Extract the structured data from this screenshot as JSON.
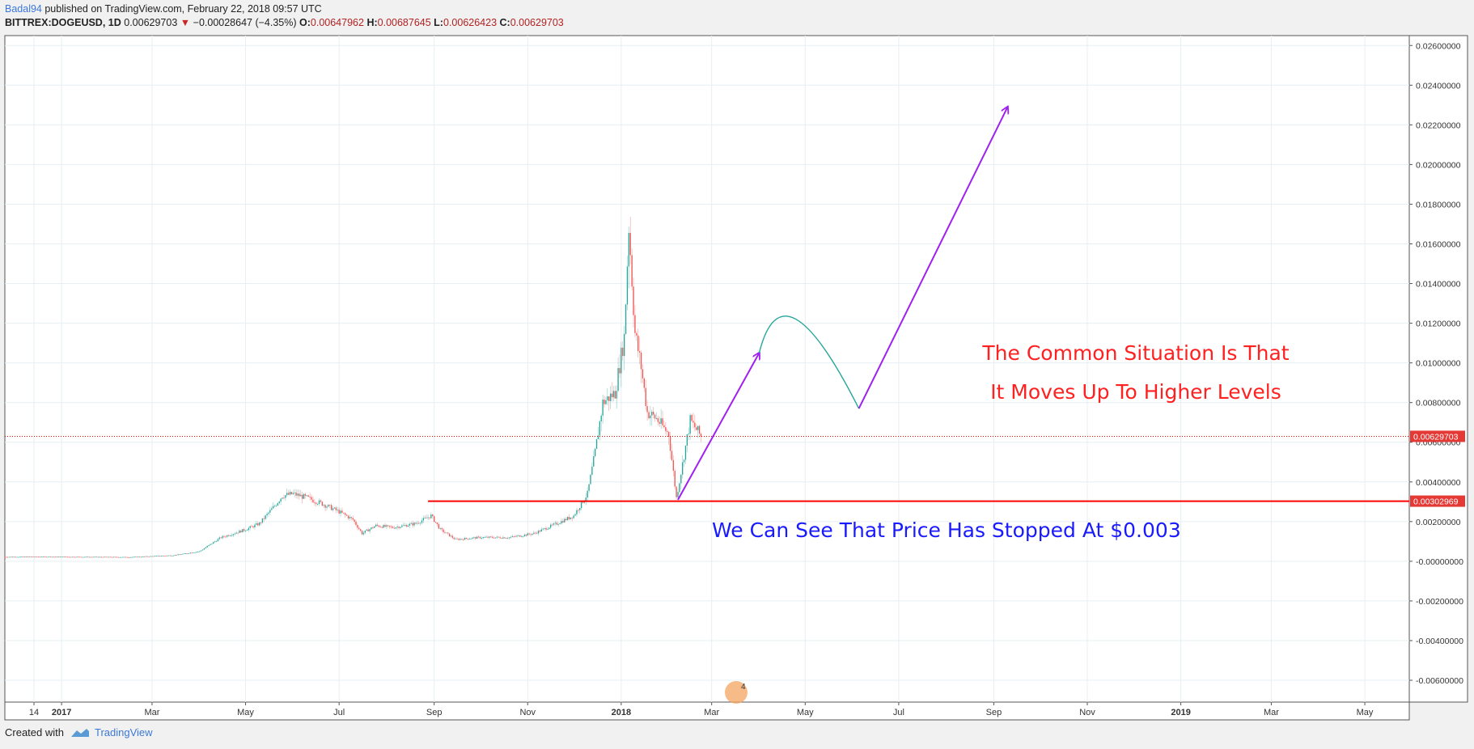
{
  "header": {
    "author": "Badal94",
    "published": "published on TradingView.com, February 22, 2018 09:57 UTC",
    "symbol": "BITTREX:DOGEUSD, 1D",
    "last": "0.00629703",
    "change_arrow": "▼",
    "change": "−0.00028647 (−4.35%)",
    "open_label": "O:",
    "open": "0.00647962",
    "high_label": "H:",
    "high": "0.00687645",
    "low_label": "L:",
    "low": "0.00626423",
    "close_label": "C:",
    "close": "0.00629703"
  },
  "footer": {
    "created_with": "Created with",
    "brand": "TradingView"
  },
  "colors": {
    "up": "#26a69a",
    "down": "#ef5350",
    "hline": "#ff0000",
    "arrow": "#a020f0",
    "curve": "#26a69a",
    "blue_text": "#1a1aff",
    "red_text": "#ff2020",
    "grid": "#e6eff3"
  },
  "chart_data": {
    "type": "candlestick",
    "y_axis_ticks": [
      "0.02600000",
      "0.02400000",
      "0.02200000",
      "0.02000000",
      "0.01800000",
      "0.01600000",
      "0.01400000",
      "0.01200000",
      "0.01000000",
      "0.00800000",
      "0.00600000",
      "0.00400000",
      "0.00200000",
      "-0.00000000",
      "-0.00200000",
      "-0.00400000",
      "-0.00600000"
    ],
    "x_axis_ticks": [
      "14",
      "2017",
      "Mar",
      "May",
      "Jul",
      "Sep",
      "Nov",
      "2018",
      "Mar",
      "May",
      "Jul",
      "Sep",
      "Nov",
      "2019",
      "Mar",
      "May"
    ],
    "ylim": [
      -0.0071,
      0.0265
    ],
    "x_range": [
      "2016-11-25",
      "2019-05-30"
    ],
    "price_series": [
      [
        "2016-11-25",
        0.00022
      ],
      [
        "2016-12-15",
        0.00023
      ],
      [
        "2017-01-15",
        0.00022
      ],
      [
        "2017-02-15",
        0.00021
      ],
      [
        "2017-03-15",
        0.0003
      ],
      [
        "2017-04-01",
        0.0005
      ],
      [
        "2017-04-15",
        0.0012
      ],
      [
        "2017-05-01",
        0.0016
      ],
      [
        "2017-05-10",
        0.0019
      ],
      [
        "2017-05-20",
        0.0028
      ],
      [
        "2017-05-25",
        0.0033
      ],
      [
        "2017-06-01",
        0.0034
      ],
      [
        "2017-06-10",
        0.0032
      ],
      [
        "2017-06-20",
        0.0029
      ],
      [
        "2017-07-01",
        0.0025
      ],
      [
        "2017-07-10",
        0.0021
      ],
      [
        "2017-07-16",
        0.0014
      ],
      [
        "2017-07-25",
        0.0018
      ],
      [
        "2017-08-05",
        0.0017
      ],
      [
        "2017-08-20",
        0.0019
      ],
      [
        "2017-08-30",
        0.0023
      ],
      [
        "2017-09-05",
        0.0016
      ],
      [
        "2017-09-15",
        0.0011
      ],
      [
        "2017-10-01",
        0.0012
      ],
      [
        "2017-10-20",
        0.0012
      ],
      [
        "2017-11-05",
        0.0014
      ],
      [
        "2017-11-20",
        0.0019
      ],
      [
        "2017-12-01",
        0.0023
      ],
      [
        "2017-12-10",
        0.0034
      ],
      [
        "2017-12-15",
        0.0055
      ],
      [
        "2017-12-20",
        0.008
      ],
      [
        "2017-12-28",
        0.0085
      ],
      [
        "2018-01-03",
        0.0113
      ],
      [
        "2018-01-06",
        0.0169
      ],
      [
        "2018-01-10",
        0.0115
      ],
      [
        "2018-01-14",
        0.0098
      ],
      [
        "2018-01-18",
        0.0075
      ],
      [
        "2018-01-24",
        0.0072
      ],
      [
        "2018-02-01",
        0.0064
      ],
      [
        "2018-02-06",
        0.0032
      ],
      [
        "2018-02-10",
        0.0049
      ],
      [
        "2018-02-15",
        0.0071
      ],
      [
        "2018-02-22",
        0.0063
      ]
    ],
    "horizontal_line": {
      "value": "0.00302969",
      "from": "2017-08-28"
    },
    "last_price_line": {
      "value": "0.00629703"
    },
    "annotations": [
      "We Can See That Price Has Stopped At $0.003",
      "The Common Situation Is That",
      "It Moves Up To Higher Levels"
    ],
    "projection": [
      {
        "shape": "arrow",
        "from": [
          "2018-02-07",
          0.0031
        ],
        "to": [
          "2018-04-01",
          0.0105
        ]
      },
      {
        "shape": "curve",
        "from": [
          "2018-04-01",
          0.0105
        ],
        "peak": [
          "2018-04-25",
          0.0122
        ],
        "to": [
          "2018-06-05",
          0.0077
        ]
      },
      {
        "shape": "arrow",
        "from": [
          "2018-06-05",
          0.0077
        ],
        "to": [
          "2018-09-10",
          0.0229
        ]
      }
    ],
    "watermark_badge": "4"
  }
}
